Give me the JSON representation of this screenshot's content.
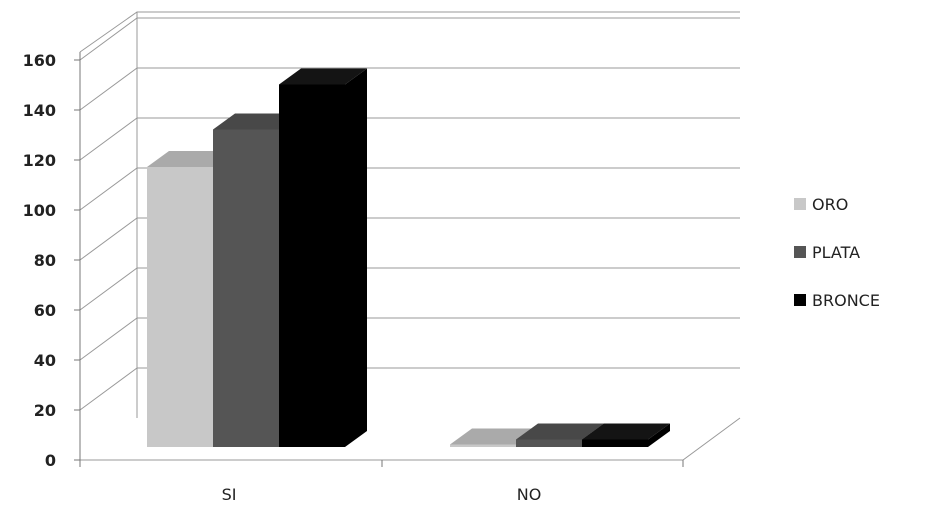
{
  "chart_data": {
    "type": "bar",
    "categories": [
      "SI",
      "NO"
    ],
    "series": [
      {
        "name": "ORO",
        "values": [
          112,
          1
        ],
        "color": "#c8c8c8"
      },
      {
        "name": "PLATA",
        "values": [
          127,
          3
        ],
        "color": "#555555"
      },
      {
        "name": "BRONCE",
        "values": [
          145,
          3
        ],
        "color": "#000000"
      }
    ],
    "ylim": [
      0,
      160
    ],
    "yticks": [
      "0",
      "20",
      "40",
      "60",
      "80",
      "100",
      "120",
      "140",
      "160"
    ],
    "grid": true,
    "legend_position": "right",
    "style": "3d-clustered-column"
  }
}
